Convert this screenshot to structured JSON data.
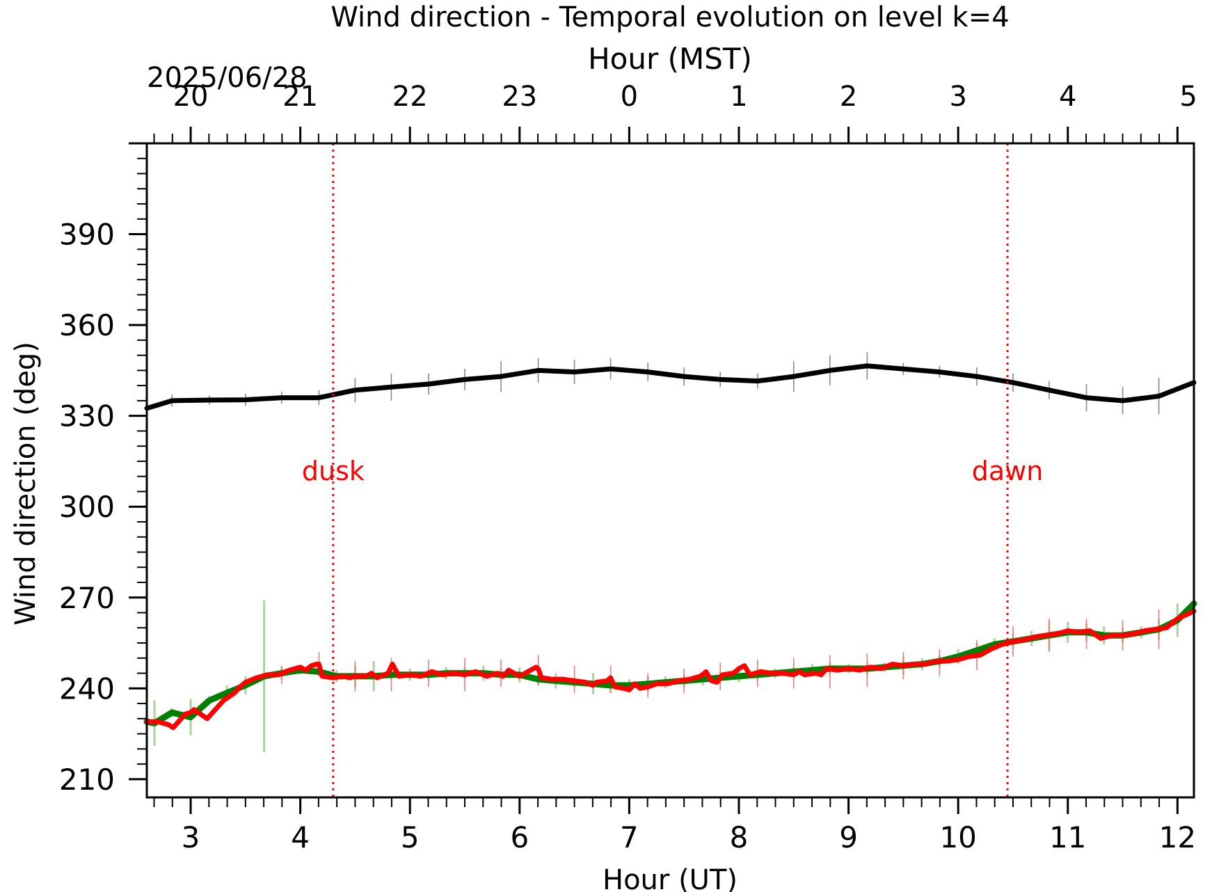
{
  "chart_data": {
    "type": "line",
    "title": "Wind direction - Temporal evolution on level k=4",
    "xlabel": "Hour (UT)",
    "ylabel": "Wind direction (deg)",
    "top_xlabel": "Hour (MST)",
    "date_label": "2025/06/28",
    "xlim": [
      2.6,
      12.15
    ],
    "ylim": [
      204,
      420
    ],
    "x_ticks": [
      3,
      4,
      5,
      6,
      7,
      8,
      9,
      10,
      11,
      12
    ],
    "x_tick_labels": [
      "3",
      "4",
      "5",
      "6",
      "7",
      "8",
      "9",
      "10",
      "11",
      "12"
    ],
    "y_ticks": [
      210,
      240,
      270,
      300,
      330,
      360,
      390
    ],
    "y_tick_labels": [
      "210",
      "240",
      "270",
      "300",
      "330",
      "360",
      "390"
    ],
    "top_ticks_ut": [
      3,
      4,
      5,
      6,
      7,
      8,
      9,
      10,
      11,
      12.1
    ],
    "top_tick_labels": [
      "20",
      "21",
      "22",
      "23",
      "0",
      "1",
      "2",
      "3",
      "4",
      "5"
    ],
    "grid": false,
    "events": [
      {
        "label": "dusk",
        "x": 4.3,
        "color": "#ff0000"
      },
      {
        "label": "dawn",
        "x": 10.45,
        "color": "#ff0000"
      }
    ],
    "series": [
      {
        "color": "#000000",
        "errorbar_color": "#888888",
        "x": [
          2.6,
          2.83,
          3.17,
          3.5,
          3.83,
          4.17,
          4.5,
          4.83,
          5.17,
          5.5,
          5.83,
          6.17,
          6.5,
          6.83,
          7.17,
          7.5,
          7.83,
          8.17,
          8.5,
          8.83,
          9.17,
          9.5,
          9.83,
          10.17,
          10.5,
          10.83,
          11.17,
          11.5,
          11.83,
          12.15
        ],
        "y": [
          332.5,
          335,
          335.2,
          335.3,
          336,
          336,
          338.5,
          339.5,
          340.5,
          342,
          343,
          345,
          344.5,
          345.5,
          344.5,
          343,
          342,
          341.5,
          343,
          345,
          346.5,
          345.5,
          344.5,
          343,
          341,
          338.5,
          336,
          335,
          336.5,
          341
        ],
        "err": [
          0,
          2,
          1.5,
          2,
          2,
          2.5,
          4,
          4.5,
          3.5,
          3.5,
          5,
          4,
          4,
          3.5,
          3,
          3,
          2.5,
          2.5,
          5,
          5,
          4.5,
          2,
          2,
          3,
          3,
          3,
          4.5,
          4.5,
          6,
          0
        ]
      },
      {
        "color": "#008000",
        "errorbar_color": "#a9d39a",
        "x": [
          2.6,
          2.67,
          2.83,
          3.0,
          3.17,
          3.33,
          3.5,
          3.67,
          3.83,
          4.0,
          4.17,
          4.33,
          4.5,
          4.67,
          4.83,
          5.0,
          5.17,
          5.33,
          5.5,
          5.67,
          5.83,
          6.0,
          6.17,
          6.33,
          6.5,
          6.67,
          6.83,
          7.0,
          7.17,
          7.33,
          7.5,
          7.67,
          7.83,
          8.0,
          8.17,
          8.33,
          8.5,
          8.67,
          8.83,
          9.0,
          9.17,
          9.33,
          9.5,
          9.67,
          9.83,
          10.0,
          10.17,
          10.33,
          10.5,
          10.67,
          10.83,
          11.0,
          11.17,
          11.33,
          11.5,
          11.67,
          11.83,
          12.0,
          12.15
        ],
        "y": [
          229,
          228.5,
          232,
          230.5,
          236,
          238.5,
          241,
          244,
          245,
          246,
          245.5,
          244,
          244,
          244,
          244.5,
          244.5,
          244.5,
          245,
          245,
          245,
          244.5,
          244.5,
          243,
          242.5,
          242,
          241.5,
          241,
          241,
          241.5,
          242,
          242.5,
          243,
          243.5,
          244,
          244.5,
          245,
          245.5,
          246,
          246.5,
          246.5,
          246.5,
          247,
          247.5,
          248,
          249,
          250.5,
          252.5,
          254.5,
          255.5,
          256.5,
          257.5,
          258.5,
          258.5,
          257.5,
          257.5,
          258.5,
          259.5,
          262.5,
          268
        ],
        "err": [
          0,
          7.5,
          1.5,
          6,
          1.5,
          2.5,
          3,
          25,
          2,
          1.5,
          1.5,
          2,
          3.5,
          5,
          1.5,
          2,
          1.5,
          2,
          2,
          2.5,
          2,
          2.5,
          2,
          2.5,
          1.5,
          3.5,
          2.5,
          2,
          2.5,
          2,
          2,
          2,
          2,
          2,
          2,
          1.5,
          1.5,
          2,
          2,
          1.5,
          2,
          1.5,
          3,
          2,
          2,
          2.5,
          2.5,
          2,
          2.5,
          2.5,
          5,
          3.5,
          3,
          3,
          2.5,
          2,
          3.5,
          5.5,
          0
        ]
      },
      {
        "color": "#ff0000",
        "errorbar_color": "#f07a7a",
        "x": [
          2.6,
          2.7,
          2.8,
          2.84,
          2.95,
          3.0,
          3.03,
          3.15,
          3.3,
          3.4,
          3.45,
          3.5,
          3.6,
          3.7,
          3.8,
          3.9,
          4.0,
          4.05,
          4.1,
          4.15,
          4.17,
          4.2,
          4.3,
          4.4,
          4.45,
          4.5,
          4.6,
          4.65,
          4.7,
          4.8,
          4.84,
          4.9,
          5.0,
          5.1,
          5.2,
          5.3,
          5.4,
          5.5,
          5.6,
          5.7,
          5.8,
          5.85,
          5.9,
          6.0,
          6.1,
          6.15,
          6.17,
          6.2,
          6.3,
          6.4,
          6.5,
          6.6,
          6.67,
          6.7,
          6.8,
          6.83,
          6.87,
          6.95,
          7.0,
          7.05,
          7.1,
          7.17,
          7.25,
          7.35,
          7.45,
          7.55,
          7.65,
          7.7,
          7.75,
          7.8,
          7.85,
          7.95,
          8.0,
          8.05,
          8.1,
          8.2,
          8.3,
          8.4,
          8.5,
          8.55,
          8.6,
          8.7,
          8.75,
          8.8,
          8.9,
          9.0,
          9.1,
          9.2,
          9.3,
          9.4,
          9.5,
          9.6,
          9.7,
          9.8,
          9.9,
          10.0,
          10.1,
          10.2,
          10.3,
          10.4,
          10.5,
          10.6,
          10.7,
          10.8,
          10.9,
          11.0,
          11.1,
          11.2,
          11.3,
          11.4,
          11.5,
          11.6,
          11.7,
          11.8,
          11.9,
          12.0,
          12.15
        ],
        "y": [
          229,
          229,
          228,
          227,
          231.5,
          232,
          233,
          230,
          236,
          238.5,
          240.5,
          242,
          243.5,
          244.5,
          244.5,
          246,
          247,
          246,
          247.5,
          248,
          248,
          244,
          243.5,
          244,
          243.5,
          244,
          244,
          245,
          243.5,
          245,
          248,
          244,
          244.5,
          244,
          245.5,
          244.5,
          245,
          244.5,
          245.5,
          244,
          245,
          244,
          246,
          244,
          246,
          247,
          246.5,
          243.5,
          243,
          243,
          242.5,
          242,
          241,
          242,
          242.5,
          243.5,
          240.5,
          240,
          239.5,
          241.5,
          240,
          240.5,
          241.5,
          241.5,
          242.5,
          243,
          244,
          245.5,
          242.5,
          242,
          244.5,
          245,
          246.5,
          247.5,
          244.5,
          245.5,
          245,
          245,
          244.5,
          245.5,
          244.5,
          245,
          244.5,
          246.5,
          246,
          246.5,
          246,
          247,
          246.5,
          248,
          247.5,
          248,
          248,
          249,
          249,
          249.5,
          250.5,
          251,
          253,
          254.5,
          255.5,
          256,
          257,
          257.5,
          258,
          259,
          258.5,
          259,
          256.5,
          257.5,
          257.5,
          258,
          259,
          259.5,
          260,
          263,
          265.5
        ]
      }
    ],
    "red_errorbars": {
      "x": [
        3.83,
        4.17,
        4.5,
        4.83,
        5.17,
        5.5,
        5.83,
        6.17,
        6.5,
        6.83,
        7.17,
        7.5,
        7.83,
        8.17,
        8.5,
        8.83,
        9.17,
        9.5,
        9.83,
        10.17,
        10.5,
        10.83,
        11.17,
        11.5,
        11.83
      ],
      "y": [
        244.5,
        248,
        244,
        244.5,
        245,
        244.5,
        245,
        246,
        243,
        243,
        241,
        242.5,
        244,
        245,
        245,
        245.5,
        246,
        247.5,
        248.5,
        251,
        255.5,
        257.5,
        258,
        257.5,
        259.5
      ],
      "err": [
        3,
        4,
        5,
        5.5,
        4.5,
        5.5,
        4.5,
        5,
        4.5,
        4.5,
        4,
        4,
        4.5,
        4.5,
        5,
        5.5,
        5.5,
        4.5,
        4.5,
        5,
        5,
        5.5,
        5,
        5,
        6.5
      ]
    }
  }
}
